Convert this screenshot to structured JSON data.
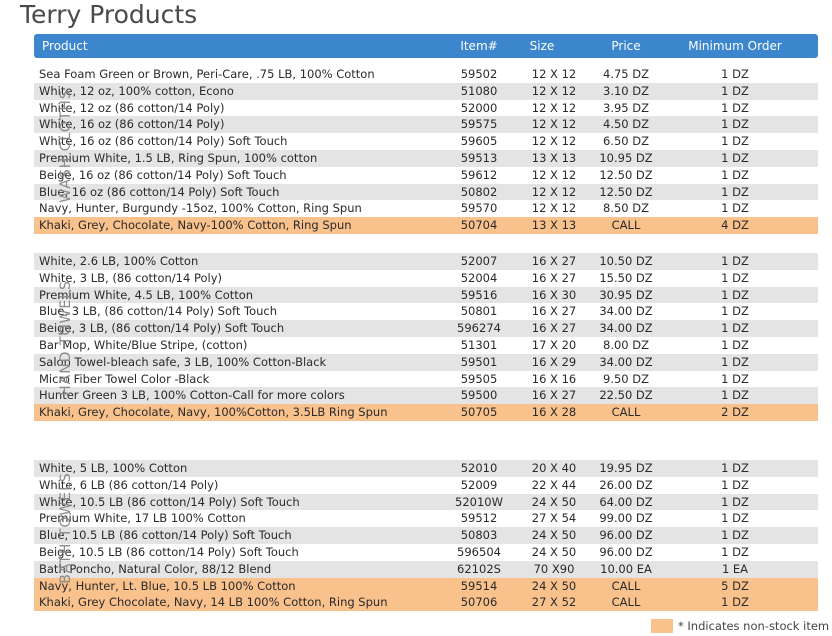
{
  "title": "Terry Products",
  "header": {
    "product": "Product",
    "item": "Item#",
    "size": "Size",
    "price": "Price",
    "min": "Minimum Order"
  },
  "sections": [
    {
      "label": "WASH CLOTHS",
      "rows": [
        {
          "product": "Sea Foam Green or Brown, Peri-Care, .75 LB, 100% Cotton",
          "item": "59502",
          "size": "12 X 12",
          "price": "4.75 DZ",
          "min": "1 DZ",
          "alt": false,
          "hl": false
        },
        {
          "product": "White, 12 oz, 100% cotton, Econo",
          "item": "51080",
          "size": "12 X 12",
          "price": "3.10 DZ",
          "min": "1 DZ",
          "alt": true,
          "hl": false
        },
        {
          "product": "White, 12 oz (86 cotton/14 Poly)",
          "item": "52000",
          "size": "12 X 12",
          "price": "3.95 DZ",
          "min": "1 DZ",
          "alt": false,
          "hl": false
        },
        {
          "product": "White, 16 oz (86 cotton/14 Poly)",
          "item": "59575",
          "size": "12 X 12",
          "price": "4.50 DZ",
          "min": "1 DZ",
          "alt": true,
          "hl": false
        },
        {
          "product": "White, 16 oz (86 cotton/14 Poly) Soft Touch",
          "item": "59605",
          "size": "12 X 12",
          "price": "6.50 DZ",
          "min": "1 DZ",
          "alt": false,
          "hl": false
        },
        {
          "product": "Premium White, 1.5 LB, Ring Spun, 100% cotton",
          "item": "59513",
          "size": "13 X 13",
          "price": "10.95 DZ",
          "min": "1 DZ",
          "alt": true,
          "hl": false
        },
        {
          "product": "Beige, 16 oz (86 cotton/14 Poly) Soft Touch",
          "item": "59612",
          "size": "12 X 12",
          "price": "12.50 DZ",
          "min": "1 DZ",
          "alt": false,
          "hl": false
        },
        {
          "product": "Blue, 16 oz (86 cotton/14 Poly) Soft Touch",
          "item": "50802",
          "size": "12 X 12",
          "price": "12.50 DZ",
          "min": "1 DZ",
          "alt": true,
          "hl": false
        },
        {
          "product": "Navy, Hunter, Burgundy -15oz, 100% Cotton, Ring Spun",
          "item": "59570",
          "size": "12 X 12",
          "price": "8.50 DZ",
          "min": "1 DZ",
          "alt": false,
          "hl": false
        },
        {
          "product": "Khaki, Grey, Chocolate, Navy-100% Cotton, Ring Spun",
          "item": "50704",
          "size": "13 X 13",
          "price": "CALL",
          "min": "4 DZ",
          "alt": false,
          "hl": true
        }
      ]
    },
    {
      "label": "HAND TOWELS",
      "rows": [
        {
          "product": "White, 2.6 LB, 100% Cotton",
          "item": "52007",
          "size": "16 X 27",
          "price": "10.50 DZ",
          "min": "1 DZ",
          "alt": true,
          "hl": false
        },
        {
          "product": "White, 3 LB, (86 cotton/14 Poly)",
          "item": "52004",
          "size": "16 X 27",
          "price": "15.50 DZ",
          "min": "1 DZ",
          "alt": false,
          "hl": false
        },
        {
          "product": "Premium White, 4.5 LB, 100% Cotton",
          "item": "59516",
          "size": "16 X 30",
          "price": "30.95 DZ",
          "min": "1 DZ",
          "alt": true,
          "hl": false
        },
        {
          "product": "Blue, 3 LB, (86 cotton/14 Poly) Soft Touch",
          "item": "50801",
          "size": "16 X 27",
          "price": "34.00 DZ",
          "min": "1 DZ",
          "alt": false,
          "hl": false
        },
        {
          "product": "Beige, 3 LB, (86 cotton/14 Poly) Soft Touch",
          "item": "596274",
          "size": "16 X 27",
          "price": "34.00 DZ",
          "min": "1 DZ",
          "alt": true,
          "hl": false
        },
        {
          "product": "Bar Mop, White/Blue Stripe, (cotton)",
          "item": "51301",
          "size": "17 X 20",
          "price": "8.00 DZ",
          "min": "1 DZ",
          "alt": false,
          "hl": false
        },
        {
          "product": "Salon Towel-bleach safe, 3 LB, 100% Cotton-Black",
          "item": "59501",
          "size": "16 X 29",
          "price": "34.00 DZ",
          "min": "1 DZ",
          "alt": true,
          "hl": false
        },
        {
          "product": "Micro Fiber Towel Color -Black",
          "item": "59505",
          "size": "16 X 16",
          "price": "9.50 DZ",
          "min": "1 DZ",
          "alt": false,
          "hl": false
        },
        {
          "product": "Hunter Green 3 LB, 100% Cotton-Call for more colors",
          "item": "59500",
          "size": "16 X 27",
          "price": "22.50 DZ",
          "min": "1 DZ",
          "alt": true,
          "hl": false
        },
        {
          "product": "Khaki, Grey, Chocolate, Navy, 100%Cotton, 3.5LB Ring Spun",
          "item": "50705",
          "size": "16 X 28",
          "price": "CALL",
          "min": "2 DZ",
          "alt": false,
          "hl": true
        }
      ]
    },
    {
      "label": "BATH TOWELS",
      "rows": [
        {
          "product": "White, 5 LB, 100% Cotton",
          "item": "52010",
          "size": "20 X 40",
          "price": "19.95 DZ",
          "min": "1 DZ",
          "alt": true,
          "hl": false
        },
        {
          "product": "White, 6 LB (86 cotton/14 Poly)",
          "item": "52009",
          "size": "22 X 44",
          "price": "26.00 DZ",
          "min": "1 DZ",
          "alt": false,
          "hl": false
        },
        {
          "product": "White, 10.5 LB (86 cotton/14 Poly) Soft Touch",
          "item": "52010W",
          "size": "24 X 50",
          "price": "64.00 DZ",
          "min": "1 DZ",
          "alt": true,
          "hl": false
        },
        {
          "product": "Premium White, 17 LB 100% Cotton",
          "item": "59512",
          "size": "27 X 54",
          "price": "99.00 DZ",
          "min": "1 DZ",
          "alt": false,
          "hl": false
        },
        {
          "product": "Blue, 10.5 LB (86 cotton/14 Poly) Soft Touch",
          "item": "50803",
          "size": "24 X 50",
          "price": "96.00 DZ",
          "min": "1 DZ",
          "alt": true,
          "hl": false
        },
        {
          "product": "Beige, 10.5 LB (86 cotton/14 Poly) Soft Touch",
          "item": "596504",
          "size": "24 X 50",
          "price": "96.00 DZ",
          "min": "1 DZ",
          "alt": false,
          "hl": false
        },
        {
          "product": "Bath Poncho, Natural Color, 88/12 Blend",
          "item": "62102S",
          "size": "70 X90",
          "price": "10.00 EA",
          "min": "1 EA",
          "alt": true,
          "hl": false
        },
        {
          "product": "Navy, Hunter, Lt. Blue, 10.5 LB 100% Cotton",
          "item": "59514",
          "size": "24 X 50",
          "price": "CALL",
          "min": "5 DZ",
          "alt": false,
          "hl": true
        },
        {
          "product": "Khaki, Grey Chocolate, Navy, 14 LB 100% Cotton, Ring Spun",
          "item": "50706",
          "size": "27 X 52",
          "price": "CALL",
          "min": "1 DZ",
          "alt": false,
          "hl": true
        }
      ]
    }
  ],
  "legend": "* Indicates non-stock item",
  "colors": {
    "header": "#3b86cc",
    "highlight": "#f9c18c",
    "alt_row": "#e4e4e4"
  }
}
